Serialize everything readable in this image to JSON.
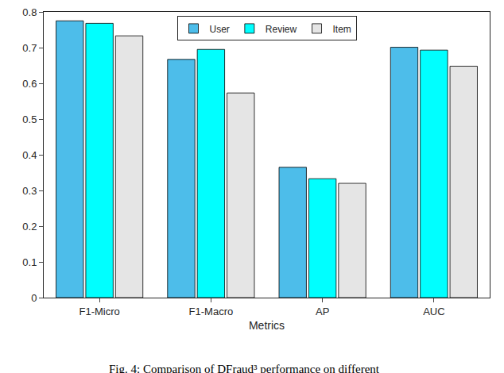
{
  "chart_data": {
    "type": "bar",
    "x_label": "Metrics",
    "caption": "Fig. 4: Comparison of DFraud³ performance on different",
    "categories": [
      "F1-Micro",
      "F1-Macro",
      "AP",
      "AUC"
    ],
    "series": [
      {
        "name": "User",
        "color": "#4dbdea",
        "values": [
          0.775,
          0.667,
          0.365,
          0.701
        ]
      },
      {
        "name": "Review",
        "color": "#00ffff",
        "values": [
          0.768,
          0.695,
          0.333,
          0.693
        ]
      },
      {
        "name": "Item",
        "color": "#e5e5e5",
        "values": [
          0.733,
          0.573,
          0.32,
          0.648
        ]
      }
    ],
    "ylim": [
      0,
      0.8
    ],
    "yticks": [
      0,
      0.1,
      0.2,
      0.3,
      0.4,
      0.5,
      0.6,
      0.7,
      0.8
    ],
    "grid": false,
    "legend": "top"
  }
}
